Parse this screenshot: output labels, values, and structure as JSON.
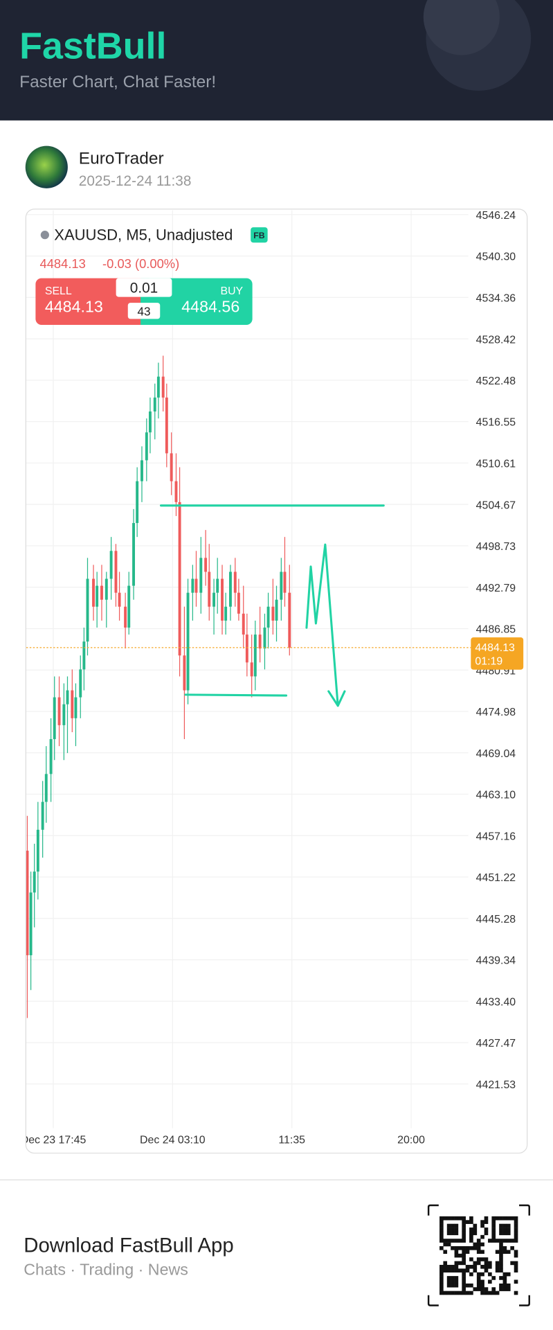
{
  "header": {
    "brand": "FastBull",
    "tagline": "Faster Chart, Chat Faster!"
  },
  "post": {
    "author": "EuroTrader",
    "timestamp": "2025-12-24 11:38"
  },
  "chart_data": {
    "type": "candlestick",
    "symbol": "XAUUSD, M5, Unadjusted",
    "badge": "FB",
    "last_price": "4484.13",
    "change": "-0.03 (0.00%)",
    "sell_label": "SELL",
    "sell_price": "4484.13",
    "buy_label": "BUY",
    "buy_price": "4484.56",
    "lot": "0.01",
    "spread": "43",
    "price_tag": "4484.13",
    "countdown": "01:19",
    "up_color": "#26b88a",
    "down_color": "#ef5b5b",
    "price_line_color": "#f5a623",
    "x": [
      -22,
      -19,
      -16,
      -13,
      -9,
      -6,
      -2,
      1,
      5,
      9,
      12,
      16,
      19,
      23,
      26,
      29,
      34,
      37,
      41,
      45,
      49,
      53,
      56,
      61,
      64,
      68,
      71,
      75,
      79,
      82,
      86,
      89,
      93,
      96,
      100,
      104,
      107,
      111,
      114,
      118,
      121,
      125,
      129,
      132,
      136,
      139,
      143,
      146,
      150,
      154,
      157,
      161,
      164,
      168,
      171,
      175,
      179,
      182,
      186,
      189,
      193,
      196,
      200
    ],
    "open": [
      4455,
      4440,
      4449,
      4452,
      4458,
      4462,
      4466,
      4471,
      4477,
      4473,
      4476,
      4478,
      4474,
      4477,
      4481,
      4485,
      4494,
      4490,
      4493,
      4491,
      4494,
      4498,
      4492,
      4490,
      4487,
      4493,
      4502,
      4508,
      4511,
      4515,
      4518,
      4520,
      4523,
      4520,
      4512,
      4508,
      4505,
      4483,
      4478,
      4492,
      4494,
      4492,
      4497,
      4495,
      4490,
      4492,
      4494,
      4488,
      4490,
      4495,
      4492,
      4489,
      4486,
      4482,
      4480,
      4486,
      4484,
      4487,
      4490,
      4488,
      4491,
      4495,
      4492
    ],
    "high": [
      4460,
      4452,
      4456,
      4462,
      4465,
      4470,
      4474,
      4480,
      4480,
      4479,
      4480,
      4481,
      4479,
      4483,
      4487,
      4497,
      4496,
      4495,
      4496,
      4495,
      4500,
      4499,
      4495,
      4492,
      4495,
      4504,
      4510,
      4513,
      4517,
      4520,
      4522,
      4525,
      4526,
      4522,
      4515,
      4512,
      4510,
      4490,
      4494,
      4496,
      4498,
      4500,
      4501,
      4499,
      4494,
      4497,
      4496,
      4492,
      4496,
      4497,
      4494,
      4493,
      4489,
      4486,
      4488,
      4490,
      4489,
      4492,
      4494,
      4493,
      4497,
      4500,
      4496
    ],
    "low": [
      4431,
      4435,
      4444,
      4448,
      4454,
      4459,
      4462,
      4468,
      4470,
      4468,
      4469,
      4472,
      4470,
      4474,
      4478,
      4483,
      4488,
      4487,
      4488,
      4487,
      4491,
      4490,
      4488,
      4484,
      4486,
      4491,
      4500,
      4505,
      4508,
      4512,
      4514,
      4517,
      4518,
      4510,
      4506,
      4503,
      4480,
      4471,
      4476,
      4488,
      4490,
      4489,
      4493,
      4488,
      4486,
      4489,
      4486,
      4486,
      4488,
      4490,
      4488,
      4484,
      4480,
      4477,
      4478,
      4482,
      4481,
      4484,
      4486,
      4485,
      4488,
      4490,
      4483
    ],
    "close": [
      4440,
      4449,
      4452,
      4458,
      4462,
      4466,
      4471,
      4477,
      4473,
      4476,
      4478,
      4474,
      4477,
      4481,
      4485,
      4494,
      4490,
      4493,
      4491,
      4494,
      4498,
      4492,
      4490,
      4487,
      4493,
      4502,
      4508,
      4511,
      4515,
      4518,
      4520,
      4523,
      4520,
      4512,
      4508,
      4505,
      4483,
      4478,
      4492,
      4494,
      4492,
      4497,
      4495,
      4490,
      4492,
      4494,
      4488,
      4490,
      4495,
      4492,
      4489,
      4486,
      4482,
      4480,
      4486,
      4484,
      4487,
      4490,
      4488,
      4491,
      4495,
      4492,
      4484.13
    ],
    "xlim": [
      -22.9,
      351.4
    ],
    "xticks": [
      {
        "value": 0,
        "label": "Dec 23 17:45"
      },
      {
        "value": 101,
        "label": "Dec 24 03:10"
      },
      {
        "value": 202,
        "label": "11:35"
      },
      {
        "value": 303,
        "label": "20:00"
      }
    ],
    "ylim": [
      4415.2,
      4546.85
    ],
    "yticks": [
      4546.24,
      {
        "value": 4540.3,
        "label": "4540.30"
      },
      4534.36,
      4528.42,
      4522.48,
      4516.55,
      4510.61,
      4504.67,
      4498.73,
      4492.79,
      4486.85,
      4480.91,
      4474.98,
      4469.04,
      {
        "value": 4463.1,
        "label": "4463.10"
      },
      4457.16,
      4451.22,
      4445.28,
      4439.34,
      {
        "value": 4433.4,
        "label": "4433.40"
      },
      4427.47,
      4421.53
    ],
    "grid": true
  },
  "footer": {
    "title": "Download FastBull App",
    "subtitle": "Chats · Trading · News"
  }
}
